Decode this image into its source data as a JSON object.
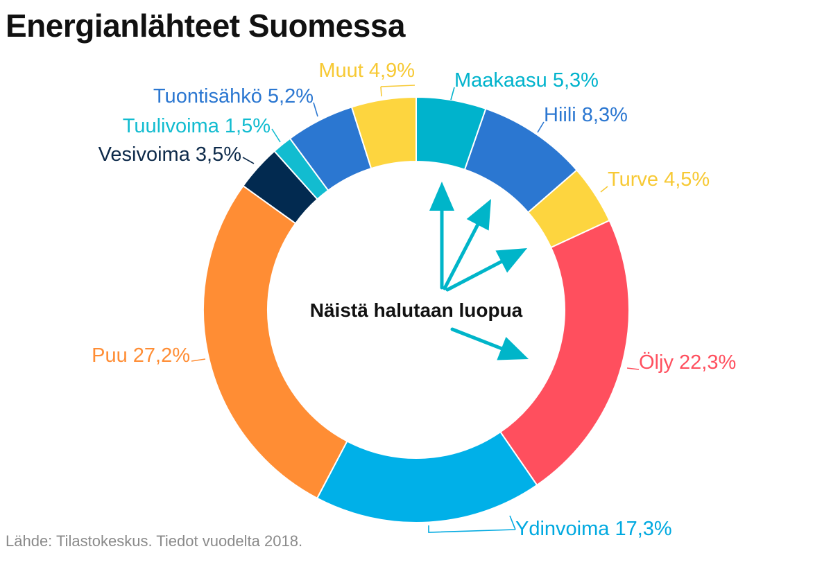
{
  "title": "Energianlähteet Suomessa",
  "source": "Lähde: Tilastokeskus. Tiedot vuodelta 2018.",
  "center_text": "Näistä halutaan luopua",
  "arrow_color": "#00b5c9",
  "chart_data": {
    "type": "pie",
    "donut": true,
    "title": "Energianlähteet Suomessa",
    "unit": "%",
    "slices": [
      {
        "label": "Maakaasu",
        "value": 5.3,
        "display": "Maakaasu 5,3%",
        "color": "#00b3cc",
        "label_color": "#00b3cc"
      },
      {
        "label": "Hiili",
        "value": 8.3,
        "display": "Hiili 8,3%",
        "color": "#2b77d1",
        "label_color": "#2b77d1"
      },
      {
        "label": "Turve",
        "value": 4.5,
        "display": "Turve 4,5%",
        "color": "#fdd53f",
        "label_color": "#f7c934"
      },
      {
        "label": "Öljy",
        "value": 22.3,
        "display": "Öljy 22,3%",
        "color": "#ff4f5e",
        "label_color": "#ff4f5e"
      },
      {
        "label": "Ydinvoima",
        "value": 17.3,
        "display": "Ydinvoima 17,3%",
        "color": "#00b0e8",
        "label_color": "#00a9e0"
      },
      {
        "label": "Puu",
        "value": 27.2,
        "display": "Puu 27,2%",
        "color": "#ff8d34",
        "label_color": "#ff8d34"
      },
      {
        "label": "Vesivoima",
        "value": 3.5,
        "display": "Vesivoima 3,5%",
        "color": "#022a50",
        "label_color": "#0d2a4a"
      },
      {
        "label": "Tuulivoima",
        "value": 1.5,
        "display": "Tuulivoima 1,5%",
        "color": "#12bcd0",
        "label_color": "#12bcd0"
      },
      {
        "label": "Tuontisähkö",
        "value": 5.2,
        "display": "Tuontisähkö 5,2%",
        "color": "#2b77d1",
        "label_color": "#2b77d1"
      },
      {
        "label": "Muut",
        "value": 4.9,
        "display": "Muut 4,9%",
        "color": "#fdd53f",
        "label_color": "#f7c934"
      }
    ],
    "highlighted": [
      "Maakaasu",
      "Hiili",
      "Turve",
      "Öljy"
    ]
  }
}
